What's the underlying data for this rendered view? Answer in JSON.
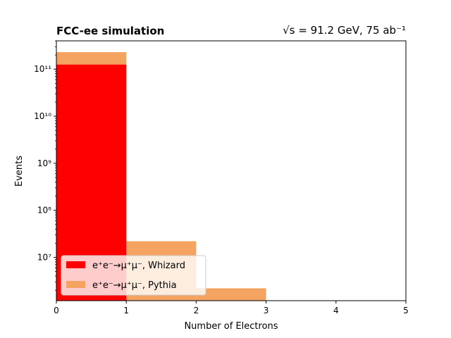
{
  "chart_data": {
    "type": "bar",
    "title_left": "FCC-ee simulation",
    "title_right": "√s = 91.2 GeV, 75 ab⁻¹",
    "xlabel": "Number of Electrons",
    "ylabel": "Events",
    "xlim": [
      0,
      5
    ],
    "ylim": [
      1200000,
      400000000000
    ],
    "yscale": "log",
    "x_ticks": [
      0,
      1,
      2,
      3,
      4,
      5
    ],
    "y_ticks": [
      {
        "value": 10000000,
        "label": "10⁷"
      },
      {
        "value": 100000000,
        "label": "10⁸"
      },
      {
        "value": 1000000000,
        "label": "10⁹"
      },
      {
        "value": 10000000000,
        "label": "10¹⁰"
      },
      {
        "value": 100000000000,
        "label": "10¹¹"
      }
    ],
    "bin_edges": [
      0,
      1,
      2,
      3,
      4,
      5
    ],
    "series": [
      {
        "name": "e⁺e⁻→μ⁺μ⁻, Pythia",
        "color": "#f4a460",
        "values": [
          230000000000,
          22000000,
          2200000,
          0,
          0
        ]
      },
      {
        "name": "e⁺e⁻→μ⁺μ⁻, Whizard",
        "color": "#ff0000",
        "values": [
          125000000000,
          0,
          0,
          0,
          0
        ]
      }
    ],
    "legend_position": "lower-left",
    "legend_order": [
      1,
      0
    ],
    "grid": false
  }
}
